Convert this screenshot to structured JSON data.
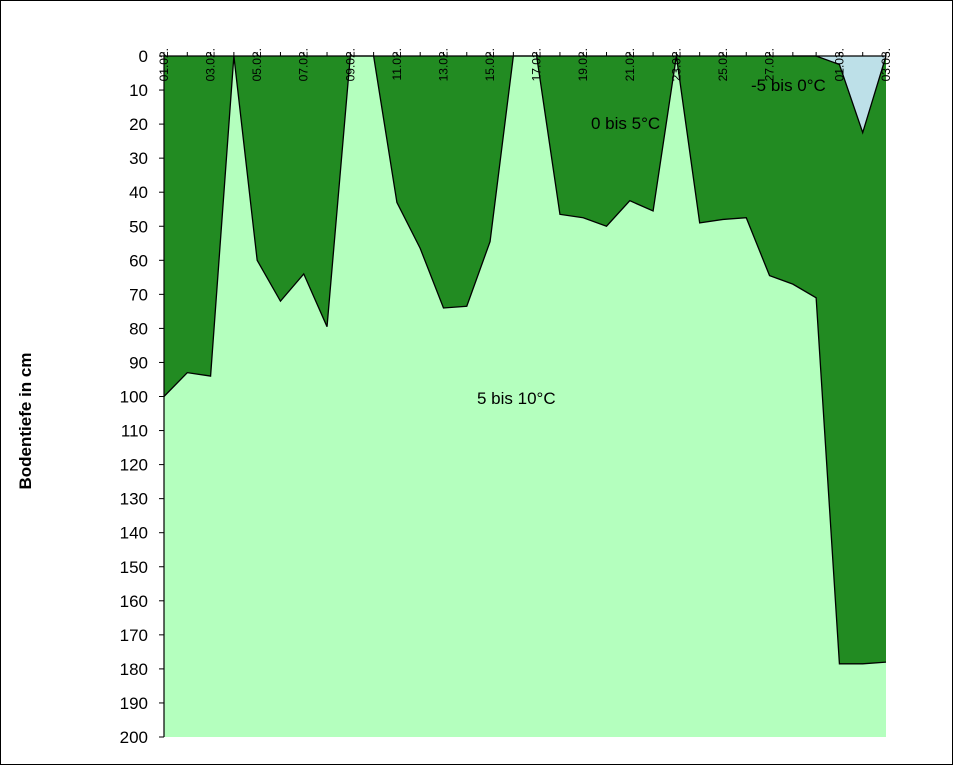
{
  "chart_data": {
    "type": "area",
    "ylabel": "Bodentiefe in cm",
    "xlabel": "",
    "title": "",
    "y_inverted": true,
    "ylim": [
      0,
      200
    ],
    "y_ticks": [
      "0",
      "10",
      "20",
      "30",
      "40",
      "50",
      "60",
      "70",
      "80",
      "90",
      "100",
      "110",
      "120",
      "130",
      "140",
      "150",
      "160",
      "170",
      "180",
      "190",
      "200"
    ],
    "x_tick_labels": [
      "01.02.",
      "03.02.",
      "05.02.",
      "07.02.",
      "09.02.",
      "11.02.",
      "13.02.",
      "15.02.",
      "17.02.",
      "19.02.",
      "21.02.",
      "23.02.",
      "25.02.",
      "27.02.",
      "01.03.",
      "03.03."
    ],
    "x": [
      "01.02.",
      "02.02.",
      "03.02.",
      "04.02.",
      "05.02.",
      "06.02.",
      "07.02.",
      "08.02.",
      "09.02.",
      "10.02.",
      "11.02.",
      "12.02.",
      "13.02.",
      "14.02.",
      "15.02.",
      "16.02.",
      "17.02.",
      "18.02.",
      "19.02.",
      "20.02.",
      "21.02.",
      "22.02.",
      "23.02.",
      "24.02.",
      "25.02.",
      "26.02.",
      "27.02.",
      "28.02.",
      "29.02.",
      "01.03.",
      "02.03.",
      "03.03."
    ],
    "series": [
      {
        "name": "-5 bis 0°C",
        "color": "#bde0e8",
        "values": [
          0,
          0,
          0,
          0,
          0,
          0,
          0,
          0,
          0,
          0,
          0,
          0,
          0,
          0,
          0,
          0,
          0,
          0,
          0,
          0,
          0,
          0,
          0,
          0,
          0,
          0,
          0,
          0,
          0,
          0,
          22.5,
          0
        ]
      },
      {
        "name": "0 bis 5°C",
        "color": "#228b22",
        "values": [
          100,
          93,
          94,
          0,
          60,
          72,
          64,
          79.5,
          0,
          0,
          43,
          56.5,
          74,
          73.5,
          54.5,
          0,
          0,
          46.5,
          47.5,
          50,
          42.5,
          45.5,
          0,
          49,
          48,
          47.5,
          64.5,
          67,
          71,
          178.5,
          178.5,
          178
        ]
      },
      {
        "name": "5 bis 10°C",
        "color": "#b4ffbe",
        "values": [
          200,
          200,
          200,
          200,
          200,
          200,
          200,
          200,
          200,
          200,
          200,
          200,
          200,
          200,
          200,
          200,
          200,
          200,
          200,
          200,
          200,
          200,
          200,
          200,
          200,
          200,
          200,
          200,
          200,
          200,
          200,
          200
        ]
      }
    ],
    "frost_line": [
      0,
      0,
      0,
      0,
      0,
      0,
      0,
      0,
      0,
      0,
      0,
      0,
      0,
      0,
      0,
      0,
      0,
      0,
      0,
      0,
      0,
      0,
      0,
      0,
      0,
      0,
      0,
      0,
      0,
      2.5,
      22.5,
      0
    ],
    "frost_start_index": 27,
    "annotations": [
      "-5 bis 0°C",
      "0 bis 5°C",
      "5 bis 10°C"
    ],
    "grid": false,
    "legend": "none"
  }
}
